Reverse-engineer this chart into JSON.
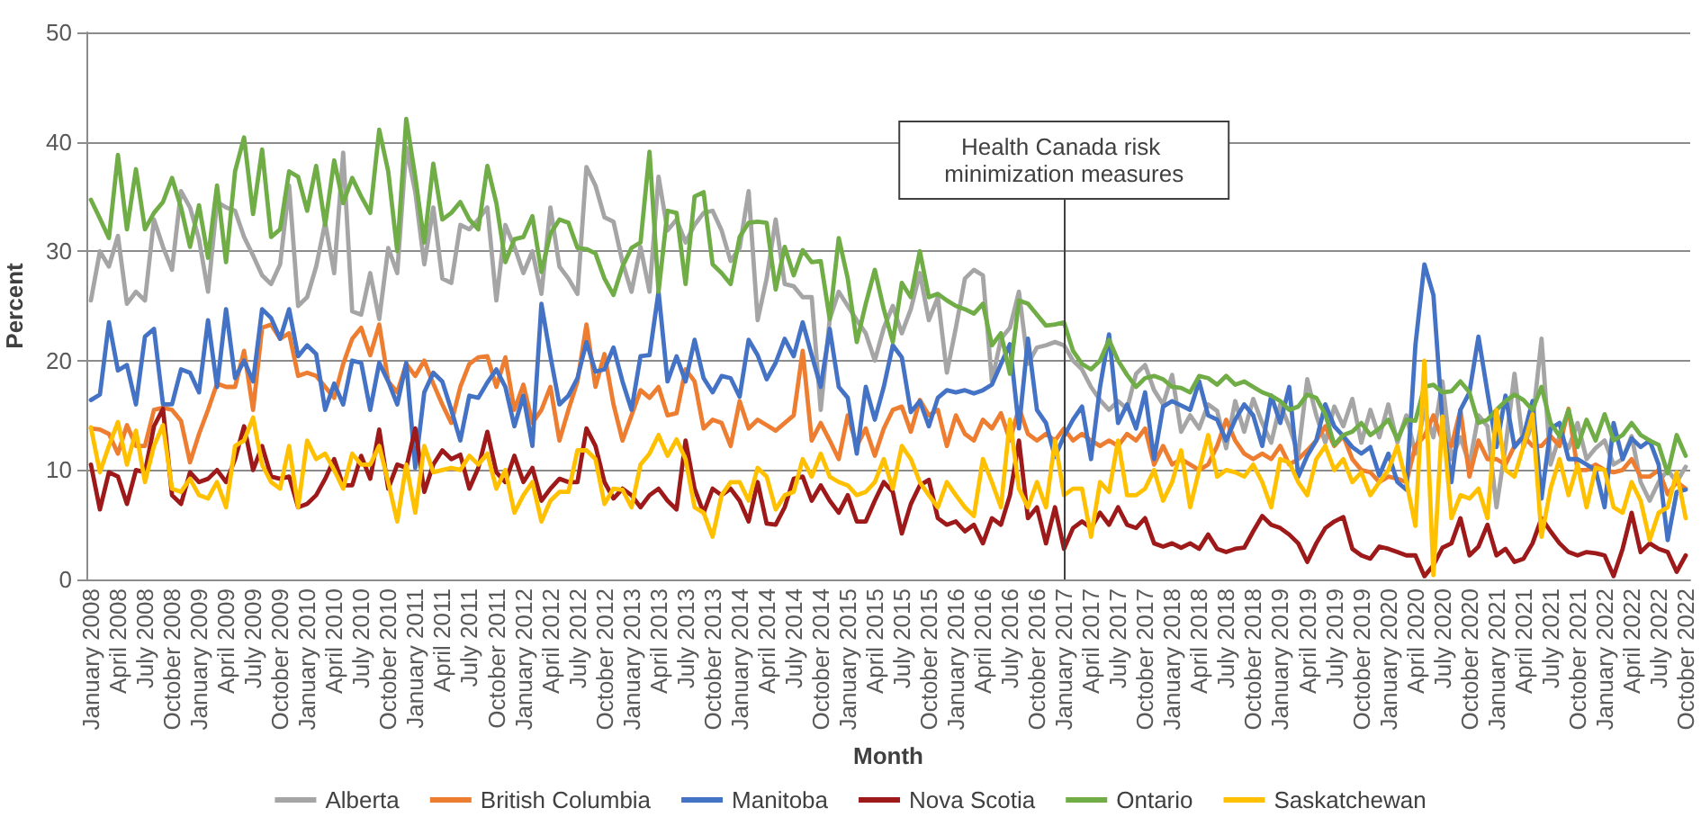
{
  "chart_data": {
    "type": "line",
    "xlabel": "Month",
    "ylabel": "Percent",
    "categories": [
      "January 2008",
      null,
      null,
      "April 2008",
      null,
      null,
      "July 2008",
      null,
      null,
      "October 2008",
      null,
      null,
      "January 2009",
      null,
      null,
      "April 2009",
      null,
      null,
      "July 2009",
      null,
      null,
      "October 2009",
      null,
      null,
      "January 2010",
      null,
      null,
      "April 2010",
      null,
      null,
      "July 2010",
      null,
      null,
      "October 2010",
      null,
      null,
      "January 2011",
      null,
      null,
      "April 2011",
      null,
      null,
      "July 2011",
      null,
      null,
      "October 2011",
      null,
      null,
      "January 2012",
      null,
      null,
      "April 2012",
      null,
      null,
      "July 2012",
      null,
      null,
      "October 2012",
      null,
      null,
      "January 2013",
      null,
      null,
      "April 2013",
      null,
      null,
      "July 2013",
      null,
      null,
      "October 2013",
      null,
      null,
      "January 2014",
      null,
      null,
      "April 2014",
      null,
      null,
      "July 2014",
      null,
      null,
      "October 2014",
      null,
      null,
      "January 2015",
      null,
      null,
      "April 2015",
      null,
      null,
      "July 2015",
      null,
      null,
      "October 2015",
      null,
      null,
      "January 2016",
      null,
      null,
      "April 2016",
      null,
      null,
      "July 2016",
      null,
      null,
      "October 2016",
      null,
      null,
      "January 2017",
      null,
      null,
      "April 2017",
      null,
      null,
      "July 2017",
      null,
      null,
      "October 2017",
      null,
      null,
      "January 2018",
      null,
      null,
      "April 2018",
      null,
      null,
      "July 2018",
      null,
      null,
      "October 2018",
      null,
      null,
      "January 2019",
      null,
      null,
      "April 2019",
      null,
      null,
      "July 2019",
      null,
      null,
      "October 2019",
      null,
      null,
      "January 2020",
      null,
      null,
      "April 2020",
      null,
      null,
      "July 2020",
      null,
      null,
      "October 2020",
      null,
      null,
      "January 2021",
      null,
      null,
      "April 2021",
      null,
      null,
      "July 2021",
      null,
      null,
      "October 2021",
      null,
      null,
      "January 2022",
      null,
      null,
      "April 2022",
      null,
      null,
      "July 2022",
      null,
      null,
      "October 2022"
    ],
    "series": [
      {
        "name": "Alberta",
        "color": "#a5a5a5",
        "values": [
          25.5,
          30,
          28.6,
          31.4,
          25.2,
          26.3,
          25.5,
          32.9,
          30.4,
          28.3,
          35.5,
          34,
          31.1,
          26.3,
          34.5,
          34,
          33.7,
          31.3,
          29.6,
          27.8,
          27,
          28.8,
          36,
          25,
          25.8,
          28.6,
          32.6,
          28,
          39,
          24.5,
          24.2,
          28,
          23.8,
          30.3,
          28,
          39.5,
          35.4,
          28.8,
          34,
          27.5,
          27.1,
          32.4,
          32,
          32.9,
          34,
          25.5,
          32.4,
          30.4,
          28,
          30,
          26.1,
          34,
          28.6,
          27.5,
          26.1,
          37.7,
          36,
          33.1,
          32.7,
          29,
          26.3,
          30.4,
          26.3,
          36.8,
          31.9,
          32.9,
          30.8,
          32.4,
          33.5,
          33.7,
          31.9,
          29.1,
          30.3,
          35.5,
          23.7,
          27.5,
          32.9,
          27,
          26.8,
          25.8,
          25.8,
          15.5,
          23.8,
          26.3,
          25,
          23.7,
          22.5,
          20,
          23,
          25,
          22.5,
          24.7,
          28,
          23.7,
          25.8,
          18.9,
          23,
          27.5,
          28.3,
          27.8,
          18.1,
          22,
          23,
          26.3,
          19.7,
          21.2,
          21.4,
          21.7,
          21.4,
          20,
          19.2,
          17.6,
          16.4,
          15.5,
          16.3,
          15.6,
          18.8,
          19.6,
          17.3,
          16,
          18.7,
          13.5,
          15,
          13.8,
          16,
          15.4,
          12,
          16.3,
          13.5,
          16.5,
          14.3,
          12.5,
          16,
          14,
          11.5,
          18.3,
          15,
          12.5,
          15.8,
          14,
          16.5,
          12.5,
          15.5,
          13,
          16,
          12.5,
          15,
          11.5,
          15.5,
          13,
          18.1,
          11,
          13,
          10.5,
          15,
          14,
          6.6,
          12.1,
          18.8,
          12.1,
          14.3,
          22,
          10.5,
          13.1,
          12,
          14.3,
          11,
          12,
          12.7,
          10.5,
          11,
          13.1,
          8.9,
          7.2,
          8.9,
          10,
          8.9,
          10.3
        ]
      },
      {
        "name": "British Columbia",
        "color": "#ed7d31",
        "values": [
          13.8,
          13.7,
          13.3,
          11.5,
          14.1,
          12.2,
          12.2,
          15.5,
          15.7,
          15.5,
          14.5,
          10.7,
          13.3,
          15.5,
          17.9,
          17.6,
          17.6,
          20.9,
          15.5,
          23,
          23.3,
          22,
          22.5,
          18.6,
          18.9,
          18.6,
          17.6,
          16.6,
          19.7,
          22,
          23,
          20.5,
          23.3,
          18.1,
          17.1,
          19.7,
          18.6,
          20,
          17.9,
          16,
          14.3,
          17.6,
          19.7,
          20.3,
          20.4,
          17.6,
          20.3,
          15.5,
          17.8,
          14.3,
          15.5,
          17.6,
          12.7,
          15.5,
          18.1,
          23.3,
          17.6,
          20.6,
          16,
          12.7,
          15,
          17.3,
          16.6,
          17.6,
          15,
          15.2,
          19.2,
          18.1,
          13.8,
          14.6,
          14.3,
          12.2,
          16.3,
          13.8,
          14.6,
          14.1,
          13.6,
          14.3,
          15,
          20.9,
          12.7,
          14.3,
          12.7,
          11,
          15,
          12.2,
          13.8,
          11.3,
          13.8,
          15.5,
          15.8,
          13.5,
          16.4,
          15,
          15.5,
          12.2,
          15,
          13.3,
          12.7,
          14.6,
          13.8,
          15.2,
          12.7,
          15.7,
          13.3,
          12.7,
          13.3,
          12.7,
          13.8,
          12.7,
          13.3,
          12.7,
          12.2,
          12.7,
          12.2,
          13.3,
          12.7,
          13.8,
          10.5,
          12.2,
          10.5,
          11,
          10.5,
          10,
          10.5,
          12.2,
          14.6,
          12.7,
          11.5,
          11,
          11.5,
          11,
          12.2,
          10.5,
          11,
          11.8,
          12.7,
          14,
          12.2,
          13.1,
          11,
          10,
          9.8,
          8.9,
          9.4,
          9.2,
          8.9,
          12.2,
          13.1,
          15,
          12.7,
          12.2,
          15.5,
          9.4,
          12.7,
          11,
          11,
          10.5,
          12.2,
          13.1,
          12.2,
          12.2,
          13.1,
          12.2,
          15.6,
          10,
          10,
          10.5,
          10,
          9.8,
          10,
          11,
          9.4,
          9.4,
          10,
          7.8,
          8.9,
          8.3
        ]
      },
      {
        "name": "Manitoba",
        "color": "#4472c4",
        "values": [
          16.4,
          16.9,
          23.5,
          19.1,
          19.6,
          16,
          22.2,
          22.9,
          16,
          16,
          19.2,
          18.9,
          17.1,
          23.7,
          17.6,
          24.7,
          18.4,
          20,
          18.1,
          24.7,
          23.9,
          22,
          24.7,
          20.4,
          21.4,
          20.6,
          15.5,
          17.9,
          16,
          20,
          19.8,
          15.5,
          19.8,
          18.1,
          16,
          19.8,
          10.2,
          17.1,
          18.9,
          18.1,
          15.5,
          12.7,
          16.8,
          16.6,
          18,
          19.2,
          17.6,
          14,
          16.8,
          12.2,
          25.2,
          20.4,
          16,
          16.8,
          18.4,
          21.7,
          19,
          19.2,
          21.2,
          18.1,
          15.5,
          20.4,
          20.5,
          26.3,
          18.1,
          20.4,
          18.1,
          21.9,
          18.4,
          17.1,
          18.6,
          18.4,
          16.7,
          21.9,
          20.5,
          18.3,
          19.8,
          22,
          20.4,
          23.5,
          20.5,
          17.6,
          22.9,
          17.6,
          16.6,
          11.5,
          17.6,
          14.6,
          17.6,
          21.4,
          20.3,
          15.3,
          16.3,
          14,
          16.6,
          17.3,
          17.1,
          17.3,
          17,
          17.3,
          17.8,
          19.7,
          21.5,
          13.8,
          22,
          15.5,
          14.3,
          11.2,
          13.1,
          14.6,
          15.8,
          11,
          17.6,
          22.4,
          14.3,
          16,
          13.8,
          17.1,
          11,
          15.8,
          16.3,
          15.9,
          15.5,
          18.1,
          15,
          14.6,
          12.7,
          14.6,
          16,
          15,
          12.2,
          16.8,
          14.3,
          17.6,
          9.4,
          11.3,
          12.7,
          16,
          14,
          13.1,
          12.1,
          11.5,
          12.1,
          9.5,
          11.5,
          8.9,
          8.2,
          21.4,
          28.8,
          26,
          14.5,
          8.9,
          15.5,
          17.1,
          22.2,
          17.1,
          12.1,
          16.8,
          12.1,
          13.1,
          16.3,
          7.4,
          13.8,
          14.3,
          11,
          11,
          10.5,
          10,
          6.6,
          14.3,
          11,
          12.9,
          12.1,
          12.7,
          10.5,
          3.6,
          8,
          8.2
        ]
      },
      {
        "name": "Nova Scotia",
        "color": "#9e1a1a",
        "values": [
          10.5,
          6.4,
          9.8,
          9.4,
          6.9,
          10,
          9.8,
          14,
          15.6,
          7.7,
          6.9,
          9.8,
          8.9,
          9.2,
          10,
          8.9,
          11,
          14,
          10,
          12.2,
          9.4,
          9.2,
          9.4,
          6.6,
          6.9,
          7.7,
          9.2,
          11,
          8.6,
          8.6,
          11.3,
          9.2,
          13.7,
          8.3,
          10.5,
          10.2,
          13.8,
          8,
          10.5,
          11.8,
          11,
          11.4,
          8.3,
          10.2,
          13.5,
          9.8,
          8.9,
          11.3,
          8.9,
          10.2,
          7.2,
          8.3,
          9.2,
          8.9,
          8.9,
          13.8,
          12.2,
          8.9,
          7.4,
          8.3,
          7.7,
          6.6,
          7.7,
          8.3,
          7.2,
          6.4,
          12.7,
          8.3,
          6.1,
          8.3,
          7.7,
          8.3,
          7.2,
          5.3,
          8.9,
          5.1,
          5,
          6.6,
          9.2,
          9.4,
          7.2,
          8.6,
          7.2,
          6.1,
          7.7,
          5.3,
          5.3,
          7.2,
          8.9,
          8,
          4.2,
          6.9,
          8.6,
          9.1,
          5.6,
          5,
          5.3,
          4.4,
          5,
          3.3,
          5.6,
          5,
          7.7,
          12.7,
          5.6,
          6.6,
          3.3,
          6.6,
          2.8,
          4.7,
          5.3,
          4.7,
          6.1,
          5,
          6.6,
          5,
          4.7,
          5.6,
          3.3,
          3,
          3.3,
          2.9,
          3.3,
          2.8,
          4.1,
          2.8,
          2.5,
          2.8,
          2.9,
          4.4,
          5.8,
          5,
          4.7,
          4.1,
          3.3,
          1.6,
          3.3,
          4.7,
          5.3,
          5.7,
          2.8,
          2.2,
          1.9,
          3,
          2.8,
          2.5,
          2.2,
          2.2,
          0.3,
          1.3,
          2.9,
          3.3,
          5.6,
          2.2,
          3,
          5,
          2.2,
          2.8,
          1.6,
          1.9,
          3.3,
          5.6,
          4.4,
          3.3,
          2.5,
          2.2,
          2.5,
          2.4,
          2.2,
          0.3,
          2.8,
          6.1,
          2.5,
          3.3,
          2.8,
          2.5,
          0.7,
          2.2
        ]
      },
      {
        "name": "Ontario",
        "color": "#70ad47",
        "values": [
          34.7,
          33,
          31.2,
          38.8,
          32,
          37.5,
          32,
          33.5,
          34.5,
          36.7,
          34,
          30.4,
          34.2,
          29.4,
          36,
          29,
          37.3,
          40.4,
          33.4,
          39.3,
          31.3,
          32,
          37.3,
          36.8,
          33.7,
          37.8,
          32.4,
          38.3,
          34.4,
          36.7,
          35,
          33.5,
          41.1,
          37.3,
          30,
          42.1,
          36.8,
          30.8,
          38,
          32.9,
          33.5,
          34.5,
          32.9,
          32,
          37.8,
          34.4,
          29,
          31.1,
          31.3,
          33.2,
          28.1,
          31.6,
          32.9,
          32.6,
          30.3,
          30.2,
          29.8,
          27.5,
          26,
          28.6,
          30.3,
          30.8,
          39.1,
          26.3,
          33.7,
          33.5,
          27,
          35,
          35.4,
          28.8,
          28,
          27,
          31.3,
          32.6,
          32.7,
          32.6,
          26.5,
          30.4,
          27.8,
          30.1,
          29,
          29.1,
          23.8,
          31.2,
          27.5,
          21.7,
          25.2,
          28.3,
          24.7,
          21.7,
          27.1,
          25.8,
          30,
          25.8,
          26.1,
          25.5,
          25,
          24.7,
          24.3,
          25.2,
          21.4,
          22.5,
          18.8,
          25.5,
          25.2,
          24.2,
          23.2,
          23.3,
          23.5,
          20.9,
          19.7,
          19.2,
          20,
          21.9,
          20,
          18.7,
          17.6,
          18.4,
          18.6,
          18.3,
          17.6,
          17.5,
          17.1,
          18.6,
          18.4,
          17.8,
          18.6,
          17.8,
          18.1,
          17.6,
          17.1,
          16.8,
          16.3,
          15.5,
          15.8,
          16.9,
          16.6,
          15.1,
          12.3,
          13.2,
          13.5,
          14.3,
          13.2,
          13.8,
          14.6,
          12.8,
          14.6,
          14.5,
          17.6,
          17.8,
          17.1,
          17.2,
          18.1,
          17.1,
          14.3,
          14.6,
          15.5,
          16.3,
          16.9,
          16.4,
          15.5,
          17.6,
          14.3,
          13.1,
          15.5,
          12.1,
          14.6,
          12.7,
          15.1,
          12.7,
          13.2,
          14.3,
          13.2,
          12.7,
          12.3,
          9.7,
          13.2,
          11.3
        ]
      },
      {
        "name": "Saskatchewan",
        "color": "#ffc000",
        "values": [
          13.9,
          9.8,
          12.2,
          14.4,
          10.5,
          13.6,
          8.9,
          12.2,
          14.1,
          8.3,
          8,
          9.2,
          7.7,
          7.4,
          8.9,
          6.6,
          12.2,
          12.7,
          14.8,
          10.5,
          8.9,
          8.3,
          12.2,
          6.6,
          12.7,
          11,
          11.5,
          10,
          8.3,
          11.5,
          10.5,
          10.5,
          12.2,
          8.9,
          5.3,
          10.5,
          6.1,
          12.2,
          9.8,
          10,
          10.2,
          10,
          11.3,
          10.5,
          11.5,
          8.3,
          10,
          6.1,
          7.7,
          8.9,
          5.3,
          7.2,
          8,
          8,
          11.8,
          11.8,
          11,
          6.9,
          8.3,
          8.2,
          6.6,
          10.5,
          11.5,
          13.2,
          11.3,
          12.8,
          11,
          6.6,
          6.1,
          3.9,
          7.7,
          8.9,
          8.9,
          7.2,
          10.2,
          9.4,
          6.4,
          7.7,
          8,
          11,
          9.4,
          11.5,
          9.4,
          8.9,
          8.6,
          7.7,
          8,
          8.9,
          11,
          8.3,
          12.2,
          11,
          8.9,
          7.7,
          6.6,
          8.9,
          7.7,
          6.6,
          5.8,
          11,
          8.9,
          6.6,
          14.6,
          8.3,
          6.6,
          8.9,
          6.6,
          12.7,
          7.7,
          8.3,
          8.3,
          3.9,
          8.9,
          8,
          12.7,
          7.7,
          7.7,
          8.3,
          10,
          7.2,
          8.9,
          11.8,
          6.6,
          10,
          13.2,
          9.4,
          10,
          9.8,
          9.4,
          10.5,
          8.9,
          6.6,
          11,
          10.7,
          8.9,
          7.7,
          11,
          12.2,
          10,
          11,
          8.9,
          9.8,
          7.7,
          8.9,
          10,
          12.2,
          8.9,
          4.9,
          20,
          0.4,
          14.9,
          5.6,
          7.7,
          7.4,
          8.3,
          5.6,
          15.5,
          10,
          9.4,
          12.2,
          15.1,
          3.9,
          8.3,
          11,
          7.7,
          10.5,
          6.6,
          10.2,
          10,
          6.6,
          6.1,
          8.9,
          7.2,
          3.6,
          6.1,
          6.6,
          9.8,
          5.6
        ]
      }
    ],
    "ylim": [
      0,
      50
    ],
    "yticks": [
      0,
      10,
      20,
      30,
      40,
      50
    ],
    "grid": "y",
    "legend": "bottom",
    "marker": "none",
    "line_style": "solid",
    "ref_lines": [
      {
        "axis": "x",
        "value": "January 2017",
        "label": "Health Canada risk minimization measures"
      }
    ]
  }
}
